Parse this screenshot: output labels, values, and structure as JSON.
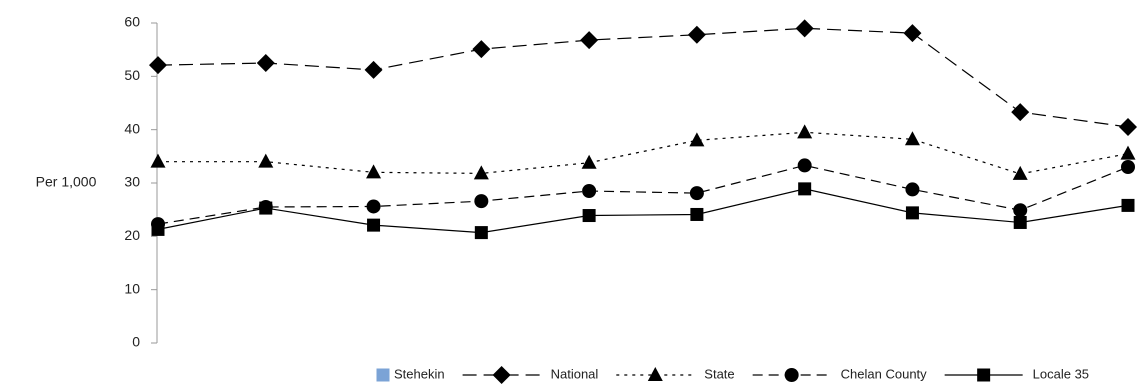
{
  "chart_data": {
    "type": "line",
    "y_label": "Per 1,000",
    "categories": [
      null,
      null,
      null,
      null,
      null,
      null,
      null,
      null,
      null,
      null
    ],
    "ylim": [
      0,
      60
    ],
    "yticks": [
      0,
      10,
      20,
      30,
      40,
      50,
      60
    ],
    "grid": false,
    "series": [
      {
        "name": "Stehekin",
        "color": "#7ba3d6",
        "marker": "square",
        "line_style": "none",
        "values": [
          null,
          null,
          null,
          null,
          null,
          null,
          null,
          null,
          null,
          null
        ]
      },
      {
        "name": "National",
        "color": "#000000",
        "marker": "diamond",
        "line_style": "long-dash",
        "values": [
          52.1,
          52.5,
          51.2,
          55.1,
          56.8,
          57.8,
          59,
          58.1,
          43.3,
          40.5
        ]
      },
      {
        "name": "State",
        "color": "#000000",
        "marker": "triangle",
        "line_style": "dot",
        "values": [
          34,
          34,
          32,
          31.8,
          33.8,
          38,
          39.5,
          38.2,
          31.7,
          35.5
        ]
      },
      {
        "name": "Chelan County",
        "color": "#000000",
        "marker": "circle",
        "line_style": "dash",
        "values": [
          22.3,
          25.5,
          25.6,
          26.6,
          28.5,
          28.1,
          33.3,
          28.8,
          24.9,
          33
        ]
      },
      {
        "name": "Locale 35",
        "color": "#000000",
        "marker": "square",
        "line_style": "solid",
        "values": [
          21.3,
          25.3,
          22.1,
          20.7,
          23.9,
          24.1,
          28.9,
          24.4,
          22.6,
          25.8
        ]
      }
    ]
  }
}
